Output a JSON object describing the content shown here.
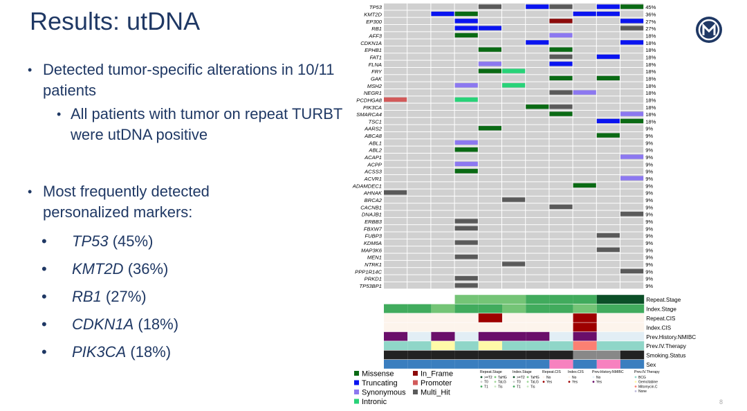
{
  "slide": {
    "title": "Results: utDNA",
    "page_number": "8",
    "logo_icon": "m-circle-logo-icon"
  },
  "bullets": {
    "b1": "Detected tumor-specific alterations in 10/11 patients",
    "b2": "All patients with tumor on repeat TURBT were utDNA positive",
    "b3": "Most frequently detected personalized markers:",
    "genes": [
      {
        "gene": "TP53",
        "pct": "(45%)"
      },
      {
        "gene": "KMT2D",
        "pct": "(36%)"
      },
      {
        "gene": "RB1",
        "pct": "(27%)"
      },
      {
        "gene": "CDKN1A",
        "pct": "(18%)"
      },
      {
        "gene": "PIK3CA",
        "pct": "(18%)"
      }
    ]
  },
  "chart_data": {
    "type": "heatmap",
    "title": "Oncoprint of personalized utDNA markers",
    "n_patients": 11,
    "colors": {
      "background": "#d0d0d0",
      "Missense": "#0a6a14",
      "Truncating": "#0a14f0",
      "Synonymous": "#8c78f0",
      "Intronic": "#28d278",
      "In_Frame": "#8c0a0a",
      "Promoter": "#d25a5a",
      "Multi_Hit": "#5a5a5a"
    },
    "genes": [
      {
        "gene": "TP53",
        "pct": "45%",
        "cells": [
          [
            4,
            "Multi_Hit"
          ],
          [
            6,
            "Truncating"
          ],
          [
            7,
            "Multi_Hit"
          ],
          [
            9,
            "Truncating"
          ],
          [
            10,
            "Missense"
          ]
        ]
      },
      {
        "gene": "KMT2D",
        "pct": "36%",
        "cells": [
          [
            2,
            "Truncating"
          ],
          [
            3,
            "Missense"
          ],
          [
            8,
            "Truncating"
          ],
          [
            9,
            "Truncating"
          ]
        ]
      },
      {
        "gene": "EP300",
        "pct": "27%",
        "cells": [
          [
            3,
            "Truncating"
          ],
          [
            7,
            "In_Frame"
          ],
          [
            10,
            "Truncating"
          ]
        ]
      },
      {
        "gene": "RB1",
        "pct": "27%",
        "cells": [
          [
            3,
            "Truncating"
          ],
          [
            4,
            "Truncating"
          ],
          [
            10,
            "Multi_Hit"
          ]
        ]
      },
      {
        "gene": "AFF3",
        "pct": "18%",
        "cells": [
          [
            3,
            "Missense"
          ],
          [
            7,
            "Synonymous"
          ]
        ]
      },
      {
        "gene": "CDKN1A",
        "pct": "18%",
        "cells": [
          [
            6,
            "Truncating"
          ],
          [
            10,
            "Truncating"
          ]
        ]
      },
      {
        "gene": "EPHB1",
        "pct": "18%",
        "cells": [
          [
            4,
            "Missense"
          ],
          [
            7,
            "Missense"
          ]
        ]
      },
      {
        "gene": "FAT1",
        "pct": "18%",
        "cells": [
          [
            7,
            "Multi_Hit"
          ],
          [
            9,
            "Truncating"
          ]
        ]
      },
      {
        "gene": "FLNA",
        "pct": "18%",
        "cells": [
          [
            4,
            "Synonymous"
          ],
          [
            7,
            "Truncating"
          ]
        ]
      },
      {
        "gene": "FRY",
        "pct": "18%",
        "cells": [
          [
            4,
            "Missense"
          ],
          [
            5,
            "Intronic"
          ]
        ]
      },
      {
        "gene": "GAK",
        "pct": "18%",
        "cells": [
          [
            7,
            "Missense"
          ],
          [
            9,
            "Missense"
          ]
        ]
      },
      {
        "gene": "MSH2",
        "pct": "18%",
        "cells": [
          [
            3,
            "Synonymous"
          ],
          [
            5,
            "Intronic"
          ]
        ]
      },
      {
        "gene": "NEGR1",
        "pct": "18%",
        "cells": [
          [
            7,
            "Multi_Hit"
          ],
          [
            8,
            "Synonymous"
          ]
        ]
      },
      {
        "gene": "PCDHGA8",
        "pct": "18%",
        "cells": [
          [
            0,
            "Promoter"
          ],
          [
            3,
            "Intronic"
          ]
        ]
      },
      {
        "gene": "PIK3CA",
        "pct": "18%",
        "cells": [
          [
            6,
            "Missense"
          ],
          [
            7,
            "Multi_Hit"
          ]
        ]
      },
      {
        "gene": "SMARCA4",
        "pct": "18%",
        "cells": [
          [
            7,
            "Missense"
          ],
          [
            10,
            "Synonymous"
          ]
        ]
      },
      {
        "gene": "TSC1",
        "pct": "18%",
        "cells": [
          [
            9,
            "Truncating"
          ],
          [
            10,
            "Missense"
          ]
        ]
      },
      {
        "gene": "AARS2",
        "pct": "9%",
        "cells": [
          [
            4,
            "Missense"
          ]
        ]
      },
      {
        "gene": "ABCA8",
        "pct": "9%",
        "cells": [
          [
            9,
            "Missense"
          ]
        ]
      },
      {
        "gene": "ABL1",
        "pct": "9%",
        "cells": [
          [
            3,
            "Synonymous"
          ]
        ]
      },
      {
        "gene": "ABL2",
        "pct": "9%",
        "cells": [
          [
            3,
            "Missense"
          ]
        ]
      },
      {
        "gene": "ACAP1",
        "pct": "9%",
        "cells": [
          [
            10,
            "Synonymous"
          ]
        ]
      },
      {
        "gene": "ACPP",
        "pct": "9%",
        "cells": [
          [
            3,
            "Synonymous"
          ]
        ]
      },
      {
        "gene": "ACSS3",
        "pct": "9%",
        "cells": [
          [
            3,
            "Missense"
          ]
        ]
      },
      {
        "gene": "ACVR1",
        "pct": "9%",
        "cells": [
          [
            10,
            "Synonymous"
          ]
        ]
      },
      {
        "gene": "ADAMDEC1",
        "pct": "9%",
        "cells": [
          [
            8,
            "Missense"
          ]
        ]
      },
      {
        "gene": "AHNAK",
        "pct": "9%",
        "cells": [
          [
            0,
            "Multi_Hit"
          ]
        ]
      },
      {
        "gene": "BRCA2",
        "pct": "9%",
        "cells": [
          [
            5,
            "Multi_Hit"
          ]
        ]
      },
      {
        "gene": "CACNB1",
        "pct": "9%",
        "cells": [
          [
            7,
            "Multi_Hit"
          ]
        ]
      },
      {
        "gene": "DNAJB1",
        "pct": "9%",
        "cells": [
          [
            10,
            "Multi_Hit"
          ]
        ]
      },
      {
        "gene": "ERBB3",
        "pct": "9%",
        "cells": [
          [
            3,
            "Multi_Hit"
          ]
        ]
      },
      {
        "gene": "FBXW7",
        "pct": "9%",
        "cells": [
          [
            3,
            "Multi_Hit"
          ]
        ]
      },
      {
        "gene": "FUBP3",
        "pct": "9%",
        "cells": [
          [
            9,
            "Multi_Hit"
          ]
        ]
      },
      {
        "gene": "KDM6A",
        "pct": "9%",
        "cells": [
          [
            3,
            "Multi_Hit"
          ]
        ]
      },
      {
        "gene": "MAP3K6",
        "pct": "9%",
        "cells": [
          [
            9,
            "Multi_Hit"
          ]
        ]
      },
      {
        "gene": "MEN1",
        "pct": "9%",
        "cells": [
          [
            3,
            "Multi_Hit"
          ]
        ]
      },
      {
        "gene": "NTRK1",
        "pct": "9%",
        "cells": [
          [
            5,
            "Multi_Hit"
          ]
        ]
      },
      {
        "gene": "PPP1R14C",
        "pct": "9%",
        "cells": [
          [
            10,
            "Multi_Hit"
          ]
        ]
      },
      {
        "gene": "PRKD1",
        "pct": "9%",
        "cells": [
          [
            3,
            "Multi_Hit"
          ]
        ]
      },
      {
        "gene": "TP53BP1",
        "pct": "9%",
        "cells": [
          [
            3,
            "Multi_Hit"
          ]
        ]
      }
    ],
    "annotations": [
      {
        "name": "Repeat.Stage",
        "colors": [
          "#ffffff",
          "#ffffff",
          "#ffffff",
          "#74c476",
          "#74c476",
          "#74c476",
          "#41ab5d",
          "#41ab5d",
          "#41ab5d",
          "#0b4f27",
          "#0b4f27"
        ]
      },
      {
        "name": "Index.Stage",
        "colors": [
          "#41ab5d",
          "#41ab5d",
          "#74c476",
          "#41ab5d",
          "#41ab5d",
          "#74c476",
          "#41ab5d",
          "#41ab5d",
          "#74c476",
          "#41ab5d",
          "#41ab5d"
        ]
      },
      {
        "name": "Repeat.CIS",
        "colors": [
          "#fdf4ec",
          "#fdf4ec",
          "#fdf4ec",
          "#fdf4ec",
          "#9e0000",
          "#fdf4ec",
          "#fdf4ec",
          "#fdf4ec",
          "#9e0000",
          "#fdf4ec",
          "#fdf4ec"
        ]
      },
      {
        "name": "Index.CIS",
        "colors": [
          "#fdf4ec",
          "#fdf4ec",
          "#fdf4ec",
          "#fdf4ec",
          "#fdf4ec",
          "#fdf4ec",
          "#fdf4ec",
          "#fdf4ec",
          "#9e0000",
          "#fdf4ec",
          "#fdf4ec"
        ]
      },
      {
        "name": "Prev.History.NMIBC",
        "colors": [
          "#6a0f6a",
          "#e2eef5",
          "#6a0f6a",
          "#e2eef5",
          "#6a0f6a",
          "#6a0f6a",
          "#6a0f6a",
          "#e2eef5",
          "#6a0f6a",
          "#e2eef5",
          "#e2eef5"
        ]
      },
      {
        "name": "Prev.IV.Therapy",
        "colors": [
          "#8fd6c8",
          "#8fd6c8",
          "#fffaa8",
          "#8fd6c8",
          "#fffaa8",
          "#8fd6c8",
          "#8fd6c8",
          "#8fd6c8",
          "#fb8072",
          "#8fd6c8",
          "#8fd6c8"
        ]
      },
      {
        "name": "Smoking.Status",
        "colors": [
          "#222222",
          "#222222",
          "#222222",
          "#222222",
          "#222222",
          "#222222",
          "#222222",
          "#222222",
          "#888888",
          "#888888",
          "#222222"
        ]
      },
      {
        "name": "Sex",
        "colors": [
          "#3a7ebf",
          "#3a7ebf",
          "#3a7ebf",
          "#3a7ebf",
          "#3a7ebf",
          "#3a7ebf",
          "#3a7ebf",
          "#f781bf",
          "#3a7ebf",
          "#f781bf",
          "#3a7ebf"
        ]
      }
    ],
    "legend": [
      {
        "label": "Missense",
        "key": "Missense"
      },
      {
        "label": "In_Frame",
        "key": "In_Frame"
      },
      {
        "label": "Truncating",
        "key": "Truncating"
      },
      {
        "label": "Promoter",
        "key": "Promoter"
      },
      {
        "label": "Synonymous",
        "key": "Synonymous"
      },
      {
        "label": "Multi_Hit",
        "key": "Multi_Hit"
      },
      {
        "label": "Intronic",
        "key": "Intronic"
      }
    ],
    "small_legend": [
      {
        "title": "Repeat.Stage",
        "items": [
          {
            "label": ">=T2",
            "color": "#0b4f27"
          },
          {
            "label": "T0",
            "color": "#cccccc"
          },
          {
            "label": "T1",
            "color": "#41ab5d"
          },
          {
            "label": "TaHG",
            "color": "#74c476"
          },
          {
            "label": "TaLG",
            "color": "#a1d99b"
          },
          {
            "label": "Tis",
            "color": "#c7e9c0"
          }
        ]
      },
      {
        "title": "Index.Stage",
        "items": [
          {
            "label": ">=T2",
            "color": "#0b4f27"
          },
          {
            "label": "T0",
            "color": "#cccccc"
          },
          {
            "label": "T1",
            "color": "#41ab5d"
          },
          {
            "label": "TaHG",
            "color": "#74c476"
          },
          {
            "label": "TaLG",
            "color": "#a1d99b"
          },
          {
            "label": "Tis",
            "color": "#c7e9c0"
          }
        ]
      },
      {
        "title": "Repeat.CIS",
        "items": [
          {
            "label": "No",
            "color": "#fdf4ec"
          },
          {
            "label": "Yes",
            "color": "#9e0000"
          }
        ]
      },
      {
        "title": "Index.CIS",
        "items": [
          {
            "label": "No",
            "color": "#fdf4ec"
          },
          {
            "label": "Yes",
            "color": "#9e0000"
          }
        ]
      },
      {
        "title": "Prev.History.NMIBC",
        "items": [
          {
            "label": "No",
            "color": "#e2eef5"
          },
          {
            "label": "Yes",
            "color": "#6a0f6a"
          }
        ]
      },
      {
        "title": "Prev.IV.Therapy",
        "items": [
          {
            "label": "BCG",
            "color": "#8fd6c8"
          },
          {
            "label": "Gemcitabine",
            "color": "#fffaa8"
          },
          {
            "label": "Mitomycin.C",
            "color": "#fb8072"
          },
          {
            "label": "None",
            "color": "#bebada"
          }
        ]
      }
    ]
  }
}
